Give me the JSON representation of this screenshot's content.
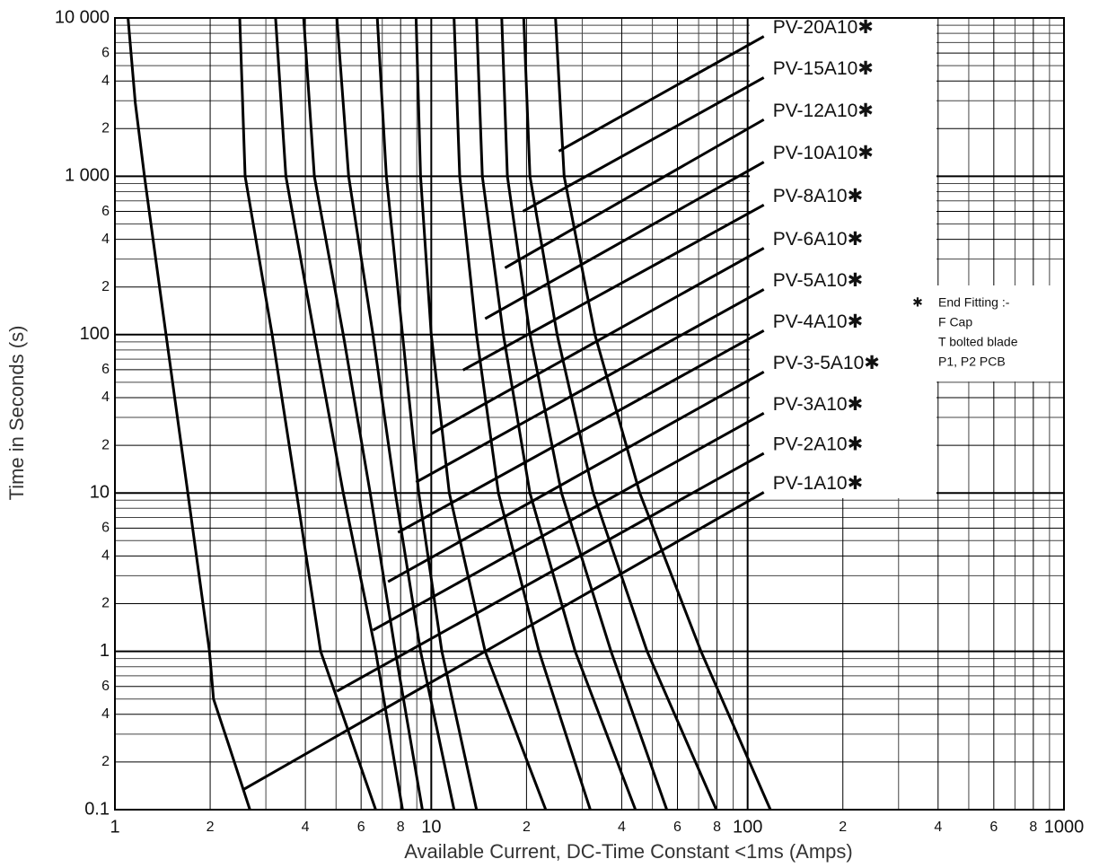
{
  "chart_data": {
    "type": "line",
    "xlabel": "Available Current, DC-Time Constant <1ms (Amps)",
    "ylabel": "Time in Seconds (s)",
    "log_x": true,
    "log_y": true,
    "grid": true,
    "minor_grid": true,
    "xlim": [
      1,
      1000
    ],
    "ylim": [
      0.1,
      10000
    ],
    "xticks": [
      1,
      2,
      4,
      6,
      8,
      10,
      {
        "value": 20,
        "label": "2"
      },
      {
        "value": 40,
        "label": "4"
      },
      {
        "value": 60,
        "label": "6"
      },
      {
        "value": 80,
        "label": "8"
      },
      100,
      {
        "value": 200,
        "label": "2"
      },
      {
        "value": 400,
        "label": "4"
      },
      {
        "value": 600,
        "label": "6"
      },
      {
        "value": 800,
        "label": "8"
      },
      1000
    ],
    "yticks": [
      0.1,
      {
        "value": 0.2,
        "label": "2"
      },
      {
        "value": 0.4,
        "label": "4"
      },
      {
        "value": 0.6,
        "label": "6"
      },
      1,
      2,
      4,
      6,
      10,
      {
        "value": 20,
        "label": "2"
      },
      {
        "value": 40,
        "label": "4"
      },
      {
        "value": 60,
        "label": "6"
      },
      100,
      {
        "value": 200,
        "label": "2"
      },
      {
        "value": 400,
        "label": "4"
      },
      {
        "value": 600,
        "label": "6"
      },
      {
        "value": 1000,
        "label": "1 000"
      },
      {
        "value": 2000,
        "label": "2"
      },
      {
        "value": 4000,
        "label": "4"
      },
      {
        "value": 6000,
        "label": "6"
      },
      {
        "value": 10000,
        "label": "10 000"
      }
    ],
    "note_symbol": "✱",
    "note": [
      "End Fitting :-",
      "F Cap",
      "T bolted blade",
      "P1, P2 PCB"
    ],
    "series": [
      {
        "name": "PV-1A10✱",
        "color": "#000000",
        "x": [
          1.1,
          1.16,
          1.24,
          1.45,
          1.7,
          1.99,
          2.05,
          2.3,
          2.67
        ],
        "values": [
          10000,
          2900,
          1000,
          100,
          10,
          1,
          0.5,
          0.25,
          0.1
        ],
        "leader": {
          "x": [
            2.53,
            112.5
          ],
          "y": [
            0.133,
            10.1
          ]
        }
      },
      {
        "name": "PV-2A10✱",
        "color": "#000000",
        "x": [
          2.48,
          2.58,
          3.14,
          3.75,
          4.47,
          6.67
        ],
        "values": [
          10000,
          1000,
          100,
          10,
          1,
          0.1
        ],
        "leader": {
          "x": [
            5.03,
            112.5
          ],
          "y": [
            0.56,
            17.8
          ]
        }
      },
      {
        "name": "PV-3A10✱",
        "color": "#000000",
        "x": [
          3.22,
          3.47,
          4.27,
          5.27,
          6.67,
          8.11
        ],
        "values": [
          10000,
          1000,
          100,
          10,
          1,
          0.1
        ],
        "leader": {
          "x": [
            6.54,
            112.5
          ],
          "y": [
            1.36,
            31.9
          ]
        }
      },
      {
        "name": "PV-3-5A10✱",
        "color": "#000000",
        "x": [
          3.95,
          4.27,
          5.27,
          6.41,
          7.7,
          9.37
        ],
        "values": [
          10000,
          1000,
          100,
          10,
          1,
          0.1
        ],
        "leader": {
          "x": [
            7.3,
            112.5
          ],
          "y": [
            2.75,
            58.2
          ]
        }
      },
      {
        "name": "PV-4A10✱",
        "color": "#000000",
        "x": [
          5.03,
          5.48,
          6.54,
          7.7,
          9.25,
          11.8
        ],
        "values": [
          10000,
          1000,
          100,
          10,
          1,
          0.1
        ],
        "leader": {
          "x": [
            7.85,
            112.5
          ],
          "y": [
            5.63,
            106
          ]
        }
      },
      {
        "name": "PV-5A10✱",
        "color": "#000000",
        "x": [
          6.75,
          7.21,
          8.11,
          9.13,
          10.8,
          13.9
        ],
        "values": [
          10000,
          1000,
          100,
          10,
          1,
          0.1
        ],
        "leader": {
          "x": [
            8.95,
            112.5
          ],
          "y": [
            11.7,
            193
          ]
        }
      },
      {
        "name": "PV-6A10✱",
        "color": "#000000",
        "x": [
          8.95,
          9.25,
          10,
          11.4,
          14.8,
          23
        ],
        "values": [
          10000,
          1000,
          100,
          10,
          1,
          0.1
        ],
        "leader": {
          "x": [
            10,
            112.5
          ],
          "y": [
            23.7,
            352
          ]
        }
      },
      {
        "name": "PV-8A10✱",
        "color": "#000000",
        "x": [
          11.8,
          12.3,
          13.9,
          16.3,
          21.9,
          31.8
        ],
        "values": [
          10000,
          1000,
          100,
          10,
          1,
          0.1
        ],
        "leader": {
          "x": [
            12.6,
            112.5
          ],
          "y": [
            59.7,
            659
          ]
        }
      },
      {
        "name": "PV-10A10✱",
        "color": "#000000",
        "x": [
          13.9,
          14.5,
          16.9,
          20.5,
          28.5,
          44.2
        ],
        "values": [
          10000,
          1000,
          100,
          10,
          1,
          0.1
        ],
        "leader": {
          "x": [
            14.8,
            112.5
          ],
          "y": [
            126,
            1230
          ]
        }
      },
      {
        "name": "PV-12A10✱",
        "color": "#000000",
        "x": [
          16.7,
          17.4,
          20.5,
          25.8,
          37,
          55.5
        ],
        "values": [
          10000,
          1000,
          100,
          10,
          1,
          0.1
        ],
        "leader": {
          "x": [
            17.1,
            112.5
          ],
          "y": [
            264,
            2280
          ]
        }
      },
      {
        "name": "PV-15A10✱",
        "color": "#000000",
        "x": [
          19.6,
          20.5,
          25,
          32.5,
          48.1,
          79.6
        ],
        "values": [
          10000,
          1000,
          100,
          10,
          1,
          0.1
        ],
        "leader": {
          "x": [
            19.5,
            112.5
          ],
          "y": [
            601,
            4200
          ]
        }
      },
      {
        "name": "PV-20A10✱",
        "color": "#000000",
        "x": [
          24.7,
          26.3,
          32.9,
          45.6,
          71.2,
          118
        ],
        "values": [
          10000,
          1000,
          100,
          10,
          1,
          0.1
        ],
        "leader": {
          "x": [
            25.3,
            112.5
          ],
          "y": [
            1440,
            7650
          ]
        }
      }
    ]
  }
}
